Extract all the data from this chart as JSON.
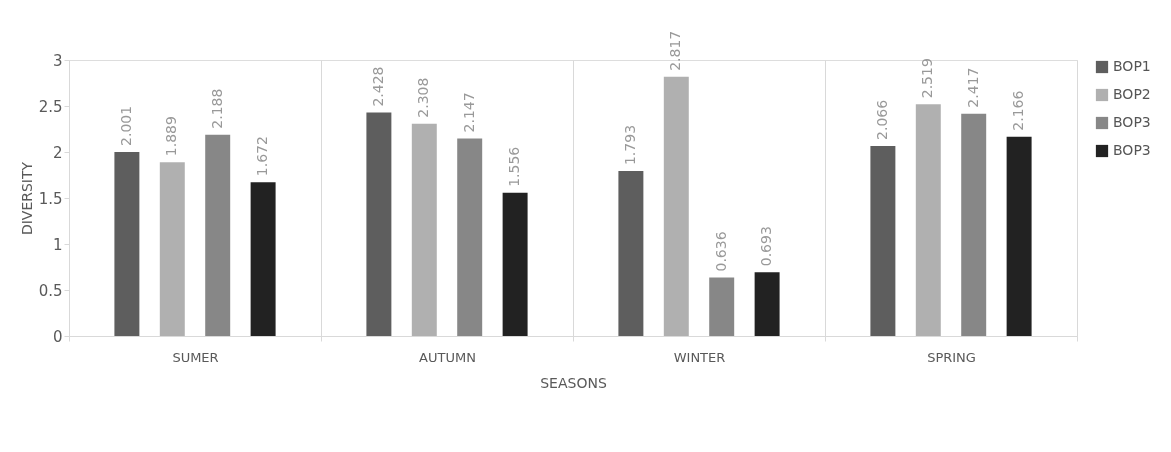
{
  "chart_data": {
    "type": "bar",
    "xlabel": "SEASONS",
    "ylabel": "DIVERSITY",
    "categories": [
      "SUMER",
      "AUTUMN",
      "WINTER",
      "SPRING"
    ],
    "series": [
      {
        "name": "BOP1",
        "color": "#5e5e5e",
        "values": [
          2.001,
          2.428,
          1.793,
          2.066
        ]
      },
      {
        "name": "BOP2",
        "color": "#b0b0b0",
        "values": [
          1.889,
          2.308,
          2.817,
          2.519
        ]
      },
      {
        "name": "BOP3",
        "color": "#878787",
        "values": [
          2.188,
          2.147,
          0.636,
          2.417
        ]
      },
      {
        "name": "BOP3",
        "color": "#222222",
        "values": [
          1.672,
          1.556,
          0.693,
          2.166
        ]
      }
    ],
    "ylim": [
      0,
      3
    ],
    "yticks": [
      0,
      0.5,
      1,
      1.5,
      2,
      2.5,
      3
    ],
    "grid": "x",
    "legend": "right",
    "data_labels": true
  }
}
